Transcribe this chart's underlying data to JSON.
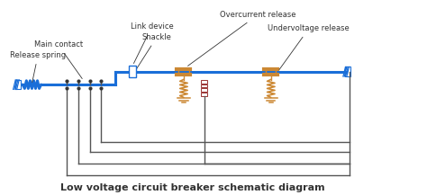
{
  "title": "Low voltage circuit breaker schematic diagram",
  "title_fontsize": 8,
  "title_fontweight": "bold",
  "bg_color": "#ffffff",
  "blue": "#1a6ed8",
  "orange": "#cc8833",
  "dark_red": "#993333",
  "gray": "#555555",
  "dark": "#333333",
  "labels": {
    "main_contact": "Main contact",
    "release_spring": "Release spring",
    "link_device": "Link device",
    "shackle": "Shackle",
    "overcurrent": "Overcurrent release",
    "undervoltage": "Undervoltage release"
  },
  "figsize": [
    4.74,
    2.17
  ],
  "dpi": 100
}
